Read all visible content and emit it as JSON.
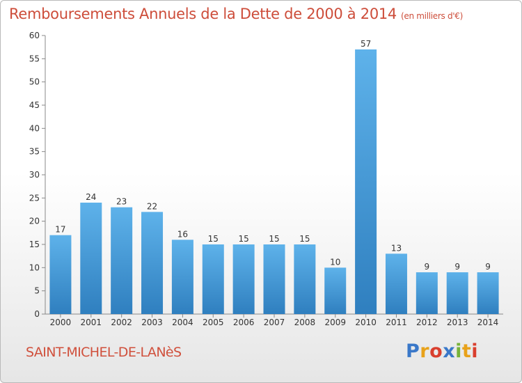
{
  "chart_data": {
    "type": "bar",
    "title": "Remboursements Annuels de la Dette de 2000 à 2014",
    "unit": "(en milliers d'€)",
    "categories": [
      "2000",
      "2001",
      "2002",
      "2003",
      "2004",
      "2005",
      "2006",
      "2007",
      "2008",
      "2009",
      "2010",
      "2011",
      "2012",
      "2013",
      "2014"
    ],
    "values": [
      17,
      24,
      23,
      22,
      16,
      15,
      15,
      15,
      15,
      10,
      57,
      13,
      9,
      9,
      9
    ],
    "ylim": [
      0,
      60
    ],
    "yticks": [
      0,
      5,
      10,
      15,
      20,
      25,
      30,
      35,
      40,
      45,
      50,
      55,
      60
    ],
    "grid": false,
    "legend": "none",
    "bar_color": "#4d9fd9"
  },
  "commune": "SAINT-MICHEL-DE-LANèS",
  "brand": {
    "letters": [
      "P",
      "r",
      "o",
      "x",
      "i",
      "t",
      "i"
    ],
    "colors": [
      "#3a78c9",
      "#e8a21a",
      "#d93f2e",
      "#3a78c9",
      "#77b33a",
      "#e8a21a",
      "#d93f2e"
    ]
  }
}
